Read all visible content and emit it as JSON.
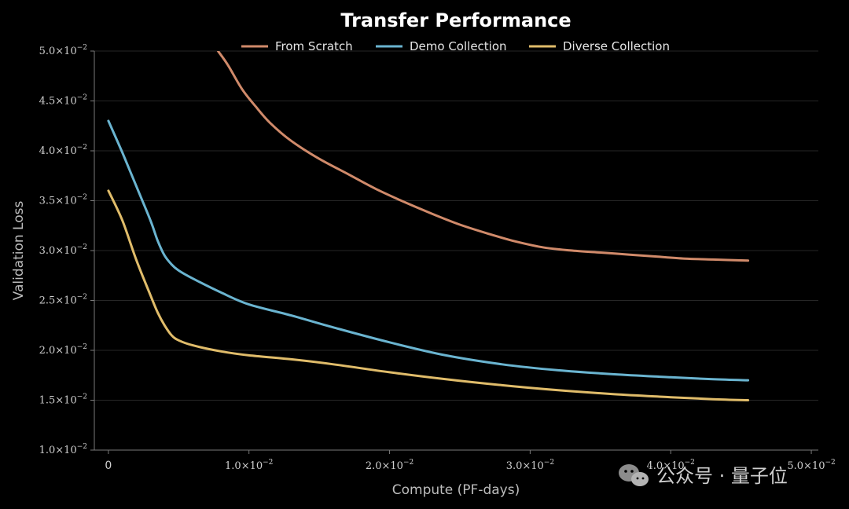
{
  "chart_data": {
    "type": "line",
    "title": "Transfer Performance",
    "xlabel": "Compute (PF-days)",
    "ylabel": "Validation Loss",
    "xlim": [
      -0.001,
      0.0505
    ],
    "ylim": [
      0.01,
      0.05
    ],
    "x_ticks": [
      {
        "value": 0,
        "label": "0",
        "sup": ""
      },
      {
        "value": 0.01,
        "label": "1.0×10",
        "sup": "−2"
      },
      {
        "value": 0.02,
        "label": "2.0×10",
        "sup": "−2"
      },
      {
        "value": 0.03,
        "label": "3.0×10",
        "sup": "−2"
      },
      {
        "value": 0.04,
        "label": "4.0×10",
        "sup": "−2"
      },
      {
        "value": 0.05,
        "label": "5.0×10",
        "sup": "−2"
      }
    ],
    "y_ticks": [
      {
        "value": 0.01,
        "label": "1.0×10",
        "sup": "−2"
      },
      {
        "value": 0.015,
        "label": "1.5×10",
        "sup": "−2"
      },
      {
        "value": 0.02,
        "label": "2.0×10",
        "sup": "−2"
      },
      {
        "value": 0.025,
        "label": "2.5×10",
        "sup": "−2"
      },
      {
        "value": 0.03,
        "label": "3.0×10",
        "sup": "−2"
      },
      {
        "value": 0.035,
        "label": "3.5×10",
        "sup": "−2"
      },
      {
        "value": 0.04,
        "label": "4.0×10",
        "sup": "−2"
      },
      {
        "value": 0.045,
        "label": "4.5×10",
        "sup": "−2"
      },
      {
        "value": 0.05,
        "label": "5.0×10",
        "sup": "−2"
      }
    ],
    "grid": "horizontal",
    "legend_position": "top-center",
    "series": [
      {
        "name": "From Scratch",
        "color": "#d08a6a",
        "points": [
          [
            0.0078,
            0.05
          ],
          [
            0.0085,
            0.0486
          ],
          [
            0.0095,
            0.0462
          ],
          [
            0.0105,
            0.0444
          ],
          [
            0.0115,
            0.0428
          ],
          [
            0.013,
            0.041
          ],
          [
            0.015,
            0.0392
          ],
          [
            0.017,
            0.0377
          ],
          [
            0.019,
            0.0362
          ],
          [
            0.021,
            0.0349
          ],
          [
            0.023,
            0.0337
          ],
          [
            0.025,
            0.0326
          ],
          [
            0.027,
            0.0317
          ],
          [
            0.029,
            0.0309
          ],
          [
            0.031,
            0.0303
          ],
          [
            0.033,
            0.03
          ],
          [
            0.035,
            0.0298
          ],
          [
            0.037,
            0.0296
          ],
          [
            0.039,
            0.0294
          ],
          [
            0.041,
            0.0292
          ],
          [
            0.043,
            0.0291
          ],
          [
            0.0455,
            0.029
          ]
        ]
      },
      {
        "name": "Demo Collection",
        "color": "#6ab4d0",
        "points": [
          [
            0.0,
            0.043
          ],
          [
            0.001,
            0.0398
          ],
          [
            0.002,
            0.0364
          ],
          [
            0.003,
            0.033
          ],
          [
            0.0035,
            0.031
          ],
          [
            0.004,
            0.0295
          ],
          [
            0.0045,
            0.0286
          ],
          [
            0.005,
            0.028
          ],
          [
            0.006,
            0.0272
          ],
          [
            0.008,
            0.0258
          ],
          [
            0.01,
            0.0246
          ],
          [
            0.013,
            0.0235
          ],
          [
            0.016,
            0.0223
          ],
          [
            0.02,
            0.0208
          ],
          [
            0.024,
            0.0195
          ],
          [
            0.028,
            0.0186
          ],
          [
            0.032,
            0.018
          ],
          [
            0.036,
            0.0176
          ],
          [
            0.04,
            0.0173
          ],
          [
            0.043,
            0.0171
          ],
          [
            0.0455,
            0.017
          ]
        ]
      },
      {
        "name": "Diverse Collection",
        "color": "#e0bc6a",
        "points": [
          [
            0.0,
            0.036
          ],
          [
            0.001,
            0.033
          ],
          [
            0.002,
            0.029
          ],
          [
            0.003,
            0.0255
          ],
          [
            0.0035,
            0.0238
          ],
          [
            0.004,
            0.0225
          ],
          [
            0.0045,
            0.0215
          ],
          [
            0.005,
            0.021
          ],
          [
            0.006,
            0.0205
          ],
          [
            0.008,
            0.0199
          ],
          [
            0.01,
            0.0195
          ],
          [
            0.013,
            0.0191
          ],
          [
            0.016,
            0.0186
          ],
          [
            0.02,
            0.0178
          ],
          [
            0.024,
            0.0171
          ],
          [
            0.028,
            0.0165
          ],
          [
            0.032,
            0.016
          ],
          [
            0.036,
            0.0156
          ],
          [
            0.04,
            0.0153
          ],
          [
            0.043,
            0.0151
          ],
          [
            0.0455,
            0.015
          ]
        ]
      }
    ]
  },
  "watermark": {
    "icon": "wechat-icon",
    "text": "公众号 · 量子位"
  }
}
